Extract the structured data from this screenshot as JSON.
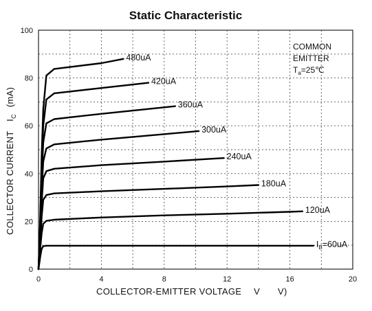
{
  "chart_data": {
    "type": "line",
    "title": "Static Characteristic",
    "xlabel": "COLLECTOR-EMITTER VOLTAGE",
    "xlabel_symbol": "V",
    "xlabel_unit": "V)",
    "ylabel": "COLLECTOR CURRENT",
    "ylabel_symbol": "I",
    "ylabel_sub": "C",
    "ylabel_unit": "(mA)",
    "xlim": [
      0,
      20
    ],
    "ylim": [
      0,
      100
    ],
    "xticks": [
      0,
      4,
      8,
      12,
      16,
      20
    ],
    "yticks": [
      0,
      20,
      40,
      60,
      80,
      100
    ],
    "grid": true,
    "annotation": {
      "line1": "COMMON",
      "line2": "EMITTER",
      "temp_symbol": "T",
      "temp_sub": "a",
      "temp_value": "=25℃"
    },
    "series": [
      {
        "name": "60uA",
        "label_prefix": "I",
        "label_sub": "B",
        "label_text": "=60uA",
        "x": [
          0,
          0.12,
          0.2,
          0.3,
          0.5,
          1,
          4,
          8,
          12,
          16,
          17.5
        ],
        "y": [
          0,
          5.5,
          8.5,
          9.6,
          9.8,
          9.8,
          9.8,
          9.8,
          9.8,
          9.8,
          9.8
        ]
      },
      {
        "name": "120uA",
        "label_text": "120uA",
        "x": [
          0,
          0.1,
          0.2,
          0.3,
          0.5,
          1,
          4,
          8,
          12,
          16,
          16.8
        ],
        "y": [
          0,
          8,
          15,
          19,
          20.2,
          20.7,
          21.6,
          22.5,
          23.2,
          24,
          24.2
        ]
      },
      {
        "name": "180uA",
        "label_text": "180uA",
        "x": [
          0,
          0.1,
          0.2,
          0.3,
          0.5,
          1,
          4,
          8,
          12,
          14
        ],
        "y": [
          0,
          10,
          22,
          29,
          31,
          31.7,
          32.6,
          33.6,
          34.6,
          35.2
        ]
      },
      {
        "name": "240uA",
        "label_text": "240uA",
        "x": [
          0,
          0.1,
          0.2,
          0.3,
          0.5,
          1,
          4,
          8,
          11.8
        ],
        "y": [
          0,
          12,
          28,
          38,
          41,
          42,
          43.5,
          45,
          46.5
        ]
      },
      {
        "name": "300uA",
        "label_text": "300uA",
        "x": [
          0,
          0.1,
          0.2,
          0.3,
          0.5,
          1,
          4,
          8,
          10.2
        ],
        "y": [
          0,
          14,
          33,
          45,
          50.5,
          52.2,
          54.2,
          56.5,
          57.8
        ]
      },
      {
        "name": "360uA",
        "label_text": "360uA",
        "x": [
          0,
          0.1,
          0.2,
          0.3,
          0.5,
          1,
          4,
          8.7
        ],
        "y": [
          0,
          16,
          38,
          53,
          61,
          62.8,
          65,
          68.2
        ]
      },
      {
        "name": "420uA",
        "label_text": "420uA",
        "x": [
          0,
          0.1,
          0.2,
          0.3,
          0.5,
          1,
          4,
          7
        ],
        "y": [
          0,
          18,
          43,
          60,
          71,
          73.6,
          75.8,
          78
        ]
      },
      {
        "name": "480uA",
        "label_text": "480uA",
        "x": [
          0,
          0.1,
          0.2,
          0.3,
          0.5,
          1,
          4,
          5.4
        ],
        "y": [
          0,
          20,
          48,
          67,
          81,
          83.8,
          86.2,
          88
        ]
      }
    ]
  }
}
